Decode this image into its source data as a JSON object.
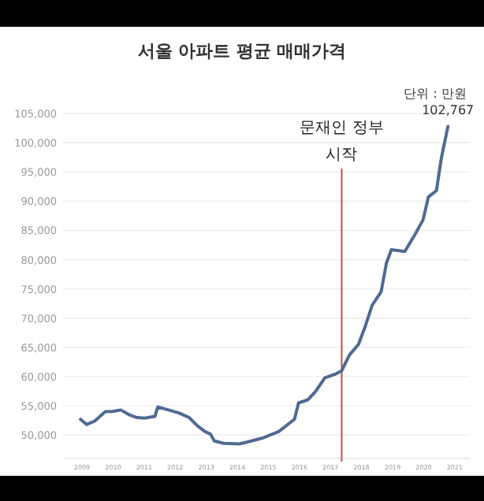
{
  "chart_data": {
    "type": "line",
    "title": "서울 아파트 평균 매매가격",
    "annotations": [
      "단위 : 만원",
      {
        "text": "102,767",
        "x": 2020.78,
        "y": 102767
      }
    ],
    "x": [
      2008.95,
      2009.15,
      2009.41,
      2009.75,
      2010.0,
      2010.25,
      2010.51,
      2010.76,
      2011.02,
      2011.35,
      2011.44,
      2011.78,
      2012.11,
      2012.45,
      2012.71,
      2012.96,
      2013.13,
      2013.26,
      2013.55,
      2014.06,
      2014.31,
      2014.82,
      2015.33,
      2015.84,
      2015.97,
      2016.26,
      2016.51,
      2016.82,
      2017.19,
      2017.36,
      2017.61,
      2017.9,
      2018.12,
      2018.34,
      2018.63,
      2018.8,
      2018.96,
      2019.39,
      2019.73,
      2019.98,
      2020.15,
      2020.41,
      2020.57,
      2020.78
    ],
    "values": [
      52700,
      51800,
      52400,
      54000,
      54050,
      54300,
      53500,
      53000,
      52900,
      53200,
      54800,
      54300,
      53800,
      53000,
      51600,
      50600,
      50200,
      49000,
      48600,
      48500,
      48800,
      49500,
      50600,
      52700,
      55500,
      56000,
      57400,
      59800,
      60500,
      61000,
      63700,
      65500,
      68600,
      72200,
      74500,
      79400,
      81700,
      81400,
      84400,
      86800,
      90700,
      91800,
      97400,
      102767
    ],
    "color": "#4e6a92",
    "xlim": [
      2008.4,
      2021.5
    ],
    "ylim": [
      46000,
      105000
    ],
    "xticks": [
      2009,
      2010,
      2011,
      2012,
      2013,
      2014,
      2015,
      2016,
      2017,
      2018,
      2019,
      2020,
      2021
    ],
    "yticks": [
      {
        "value": 50000,
        "label": "50,000"
      },
      {
        "value": 55000,
        "label": "55,000"
      },
      {
        "value": 60000,
        "label": "60,000"
      },
      {
        "value": 65000,
        "label": "65,000"
      },
      {
        "value": 70000,
        "label": "70,000"
      },
      {
        "value": 75000,
        "label": "75,000"
      },
      {
        "value": 80000,
        "label": "80,000"
      },
      {
        "value": 85000,
        "label": "85,000"
      },
      {
        "value": 90000,
        "label": "90,000"
      },
      {
        "value": 95000,
        "label": "95,000"
      },
      {
        "value": 100000,
        "label": "100,000"
      },
      {
        "value": 105000,
        "label": "105,000"
      }
    ],
    "grid": "y",
    "ref_lines": [
      {
        "axis": "x",
        "value": 2017.36,
        "label": "문재인 정부 시작",
        "color": "#c0504d"
      }
    ]
  }
}
